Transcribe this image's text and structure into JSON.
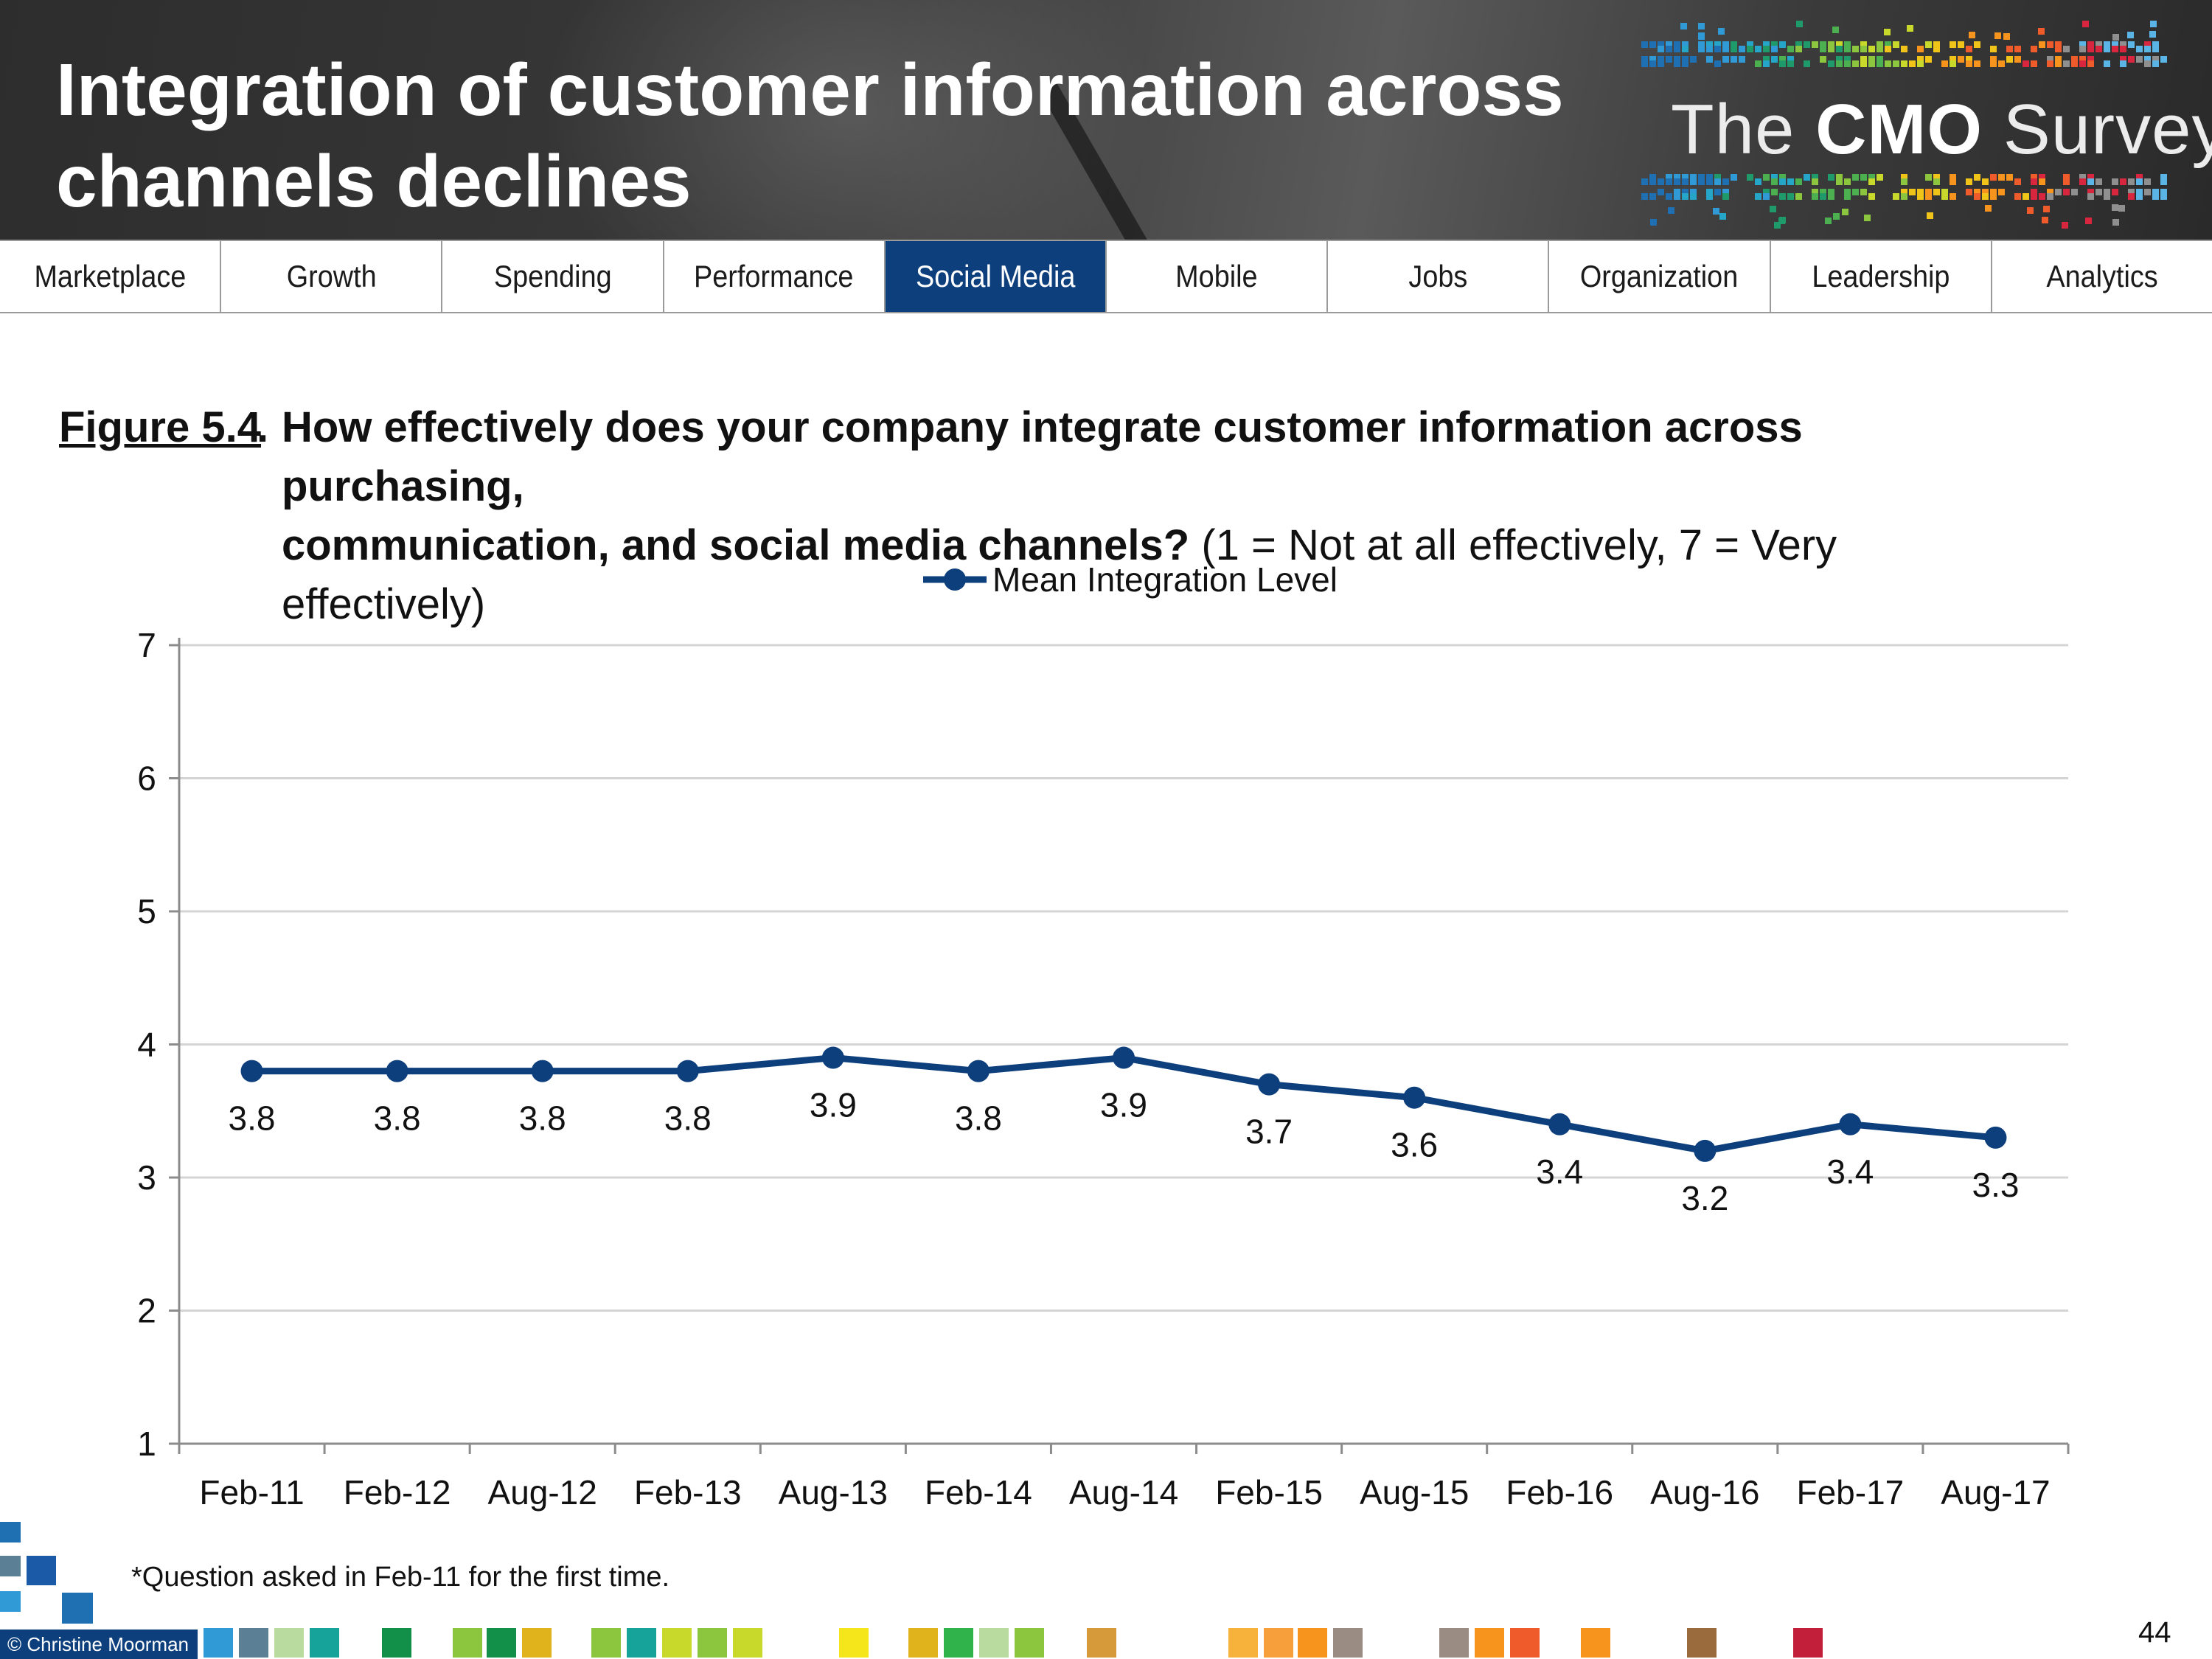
{
  "header": {
    "title_line1": "Integration of customer information across",
    "title_line2": "channels declines",
    "logo_prefix": "The",
    "logo_brand": "CMO",
    "logo_suffix": "Survey"
  },
  "nav": {
    "tabs": [
      {
        "label": "Marketplace",
        "active": false
      },
      {
        "label": "Growth",
        "active": false
      },
      {
        "label": "Spending",
        "active": false
      },
      {
        "label": "Performance",
        "active": false
      },
      {
        "label": "Social Media",
        "active": true
      },
      {
        "label": "Mobile",
        "active": false
      },
      {
        "label": "Jobs",
        "active": false
      },
      {
        "label": "Organization",
        "active": false
      },
      {
        "label": "Leadership",
        "active": false
      },
      {
        "label": "Analytics",
        "active": false
      }
    ]
  },
  "figure": {
    "label": "Figure 5.4",
    "label_suffix": ".",
    "question_bold_line1": "How effectively does your company integrate customer information across purchasing,",
    "question_bold_line2": "communication, and social media channels?",
    "question_scale": " (1 = Not at all effectively, 7 = Very effectively)"
  },
  "chart_data": {
    "type": "line",
    "title": "",
    "xlabel": "",
    "ylabel": "",
    "ylim": [
      1,
      7
    ],
    "yticks": [
      "1",
      "2",
      "3",
      "4",
      "5",
      "6",
      "7"
    ],
    "grid": true,
    "legend_position": "top-center",
    "categories": [
      "Feb-11",
      "Feb-12",
      "Aug-12",
      "Feb-13",
      "Aug-13",
      "Feb-14",
      "Aug-14",
      "Feb-15",
      "Aug-15",
      "Feb-16",
      "Aug-16",
      "Feb-17",
      "Aug-17"
    ],
    "series": [
      {
        "name": "Mean Integration Level",
        "color": "#0d3f7d",
        "values": [
          3.8,
          3.8,
          3.8,
          3.8,
          3.9,
          3.8,
          3.9,
          3.7,
          3.6,
          3.4,
          3.2,
          3.4,
          3.3
        ],
        "labels": [
          "3.8",
          "3.8",
          "3.8",
          "3.8",
          "3.9",
          "3.8",
          "3.9",
          "3.7",
          "3.6",
          "3.4",
          "3.2",
          "3.4",
          "3.3"
        ]
      }
    ]
  },
  "footer": {
    "footnote": "*Question asked in Feb-11 for the first time.",
    "copyright": "© Christine Moorman",
    "page_number": "44"
  }
}
